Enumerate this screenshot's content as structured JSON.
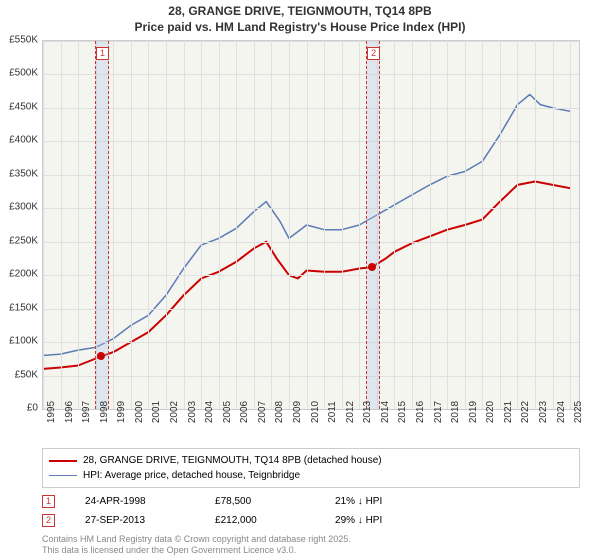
{
  "title_line1": "28, GRANGE DRIVE, TEIGNMOUTH, TQ14 8PB",
  "title_line2": "Price paid vs. HM Land Registry's House Price Index (HPI)",
  "chart": {
    "type": "line",
    "background_color": "#f5f5f0",
    "grid_color": "#e0e0e0",
    "border_color": "#cccccc",
    "x_years": [
      1995,
      1996,
      1997,
      1998,
      1999,
      2000,
      2001,
      2002,
      2003,
      2004,
      2005,
      2006,
      2007,
      2008,
      2009,
      2010,
      2011,
      2012,
      2013,
      2014,
      2015,
      2016,
      2017,
      2018,
      2019,
      2020,
      2021,
      2022,
      2023,
      2024,
      2025
    ],
    "xlim": [
      1995,
      2025.5
    ],
    "ylim": [
      0,
      550000
    ],
    "ytick_step": 50000,
    "y_tick_labels": [
      "£0",
      "£50K",
      "£100K",
      "£150K",
      "£200K",
      "£250K",
      "£300K",
      "£350K",
      "£400K",
      "£450K",
      "£500K",
      "£550K"
    ],
    "series": [
      {
        "name": "property",
        "label": "28, GRANGE DRIVE, TEIGNMOUTH, TQ14 8PB (detached house)",
        "color": "#cc0000",
        "line_width": 2,
        "data": [
          [
            1995,
            60000
          ],
          [
            1996,
            62000
          ],
          [
            1997,
            65000
          ],
          [
            1998.3,
            78500
          ],
          [
            1999,
            85000
          ],
          [
            2000,
            100000
          ],
          [
            2001,
            115000
          ],
          [
            2002,
            140000
          ],
          [
            2003,
            170000
          ],
          [
            2004,
            195000
          ],
          [
            2005,
            205000
          ],
          [
            2006,
            220000
          ],
          [
            2007,
            240000
          ],
          [
            2007.7,
            250000
          ],
          [
            2008.3,
            225000
          ],
          [
            2009,
            200000
          ],
          [
            2009.5,
            195000
          ],
          [
            2010,
            207000
          ],
          [
            2011,
            205000
          ],
          [
            2012,
            205000
          ],
          [
            2013,
            210000
          ],
          [
            2013.7,
            212000
          ],
          [
            2014.5,
            225000
          ],
          [
            2015,
            235000
          ],
          [
            2016,
            248000
          ],
          [
            2017,
            258000
          ],
          [
            2018,
            268000
          ],
          [
            2019,
            275000
          ],
          [
            2020,
            283000
          ],
          [
            2021,
            310000
          ],
          [
            2022,
            335000
          ],
          [
            2023,
            340000
          ],
          [
            2024,
            335000
          ],
          [
            2025,
            330000
          ]
        ]
      },
      {
        "name": "hpi",
        "label": "HPI: Average price, detached house, Teignbridge",
        "color": "#5a7bb5",
        "line_width": 1.5,
        "data": [
          [
            1995,
            80000
          ],
          [
            1996,
            82000
          ],
          [
            1997,
            88000
          ],
          [
            1998,
            92000
          ],
          [
            1999,
            105000
          ],
          [
            2000,
            125000
          ],
          [
            2001,
            140000
          ],
          [
            2002,
            170000
          ],
          [
            2003,
            210000
          ],
          [
            2004,
            245000
          ],
          [
            2005,
            255000
          ],
          [
            2006,
            270000
          ],
          [
            2007,
            295000
          ],
          [
            2007.7,
            310000
          ],
          [
            2008.5,
            280000
          ],
          [
            2009,
            255000
          ],
          [
            2010,
            275000
          ],
          [
            2011,
            268000
          ],
          [
            2012,
            268000
          ],
          [
            2013,
            275000
          ],
          [
            2014,
            290000
          ],
          [
            2015,
            305000
          ],
          [
            2016,
            320000
          ],
          [
            2017,
            335000
          ],
          [
            2018,
            348000
          ],
          [
            2019,
            355000
          ],
          [
            2020,
            370000
          ],
          [
            2021,
            410000
          ],
          [
            2022,
            455000
          ],
          [
            2022.7,
            470000
          ],
          [
            2023.3,
            455000
          ],
          [
            2024,
            450000
          ],
          [
            2025,
            445000
          ]
        ]
      }
    ],
    "sale_markers": [
      {
        "idx": "1",
        "year": 1998.3,
        "value": 78500
      },
      {
        "idx": "2",
        "year": 2013.73,
        "value": 212000
      }
    ],
    "marker_band_width_years": 0.35,
    "marker_band_color": "rgba(180,200,230,0.35)",
    "marker_border_color": "#cc3333"
  },
  "sales": [
    {
      "idx": "1",
      "date": "24-APR-1998",
      "price": "£78,500",
      "delta": "21% ↓ HPI"
    },
    {
      "idx": "2",
      "date": "27-SEP-2013",
      "price": "£212,000",
      "delta": "29% ↓ HPI"
    }
  ],
  "credits_line1": "Contains HM Land Registry data © Crown copyright and database right 2025.",
  "credits_line2": "This data is licensed under the Open Government Licence v3.0."
}
